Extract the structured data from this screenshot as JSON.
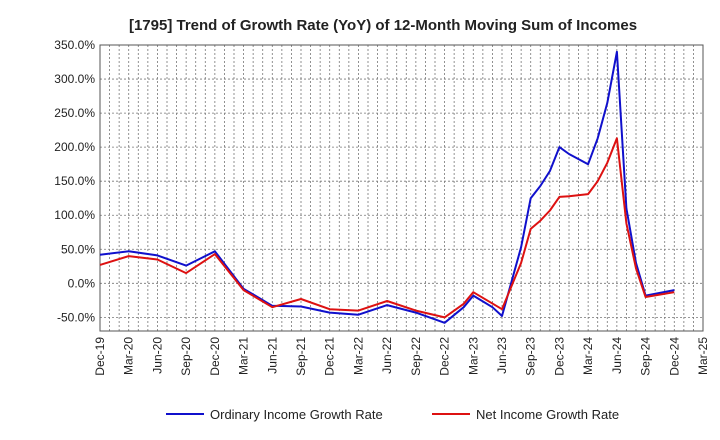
{
  "chart_data": {
    "type": "line",
    "title": "[1795]  Trend of Growth Rate (YoY) of 12-Month Moving Sum of Incomes",
    "xlabel": "",
    "ylabel": "",
    "ylim": [
      -70,
      350
    ],
    "y_ticks": [
      "350.0%",
      "300.0%",
      "250.0%",
      "200.0%",
      "150.0%",
      "100.0%",
      "50.0%",
      "0.0%",
      "-50.0%"
    ],
    "y_tick_values": [
      350,
      300,
      250,
      200,
      150,
      100,
      50,
      0,
      -50
    ],
    "x_ticks": [
      "Dec-19",
      "Mar-20",
      "Jun-20",
      "Sep-20",
      "Dec-20",
      "Mar-21",
      "Jun-21",
      "Sep-21",
      "Dec-21",
      "Mar-22",
      "Jun-22",
      "Sep-22",
      "Dec-22",
      "Mar-23",
      "Jun-23",
      "Sep-23",
      "Dec-23",
      "Mar-24",
      "Jun-24",
      "Sep-24",
      "Dec-24",
      "Mar-25"
    ],
    "grid": true,
    "legend_position": "bottom",
    "series": [
      {
        "name": "Ordinary Income Growth Rate",
        "color": "#1010cc",
        "values": [
          [
            0,
            42
          ],
          [
            3,
            47
          ],
          [
            6,
            41
          ],
          [
            9,
            26
          ],
          [
            12,
            47
          ],
          [
            15,
            -8
          ],
          [
            18,
            -33
          ],
          [
            21,
            -34
          ],
          [
            24,
            -43
          ],
          [
            27,
            -46
          ],
          [
            30,
            -32
          ],
          [
            33,
            -43
          ],
          [
            36,
            -58
          ],
          [
            38,
            -35
          ],
          [
            39,
            -18
          ],
          [
            41,
            -35
          ],
          [
            42,
            -48
          ],
          [
            44,
            53
          ],
          [
            45,
            125
          ],
          [
            46,
            143
          ],
          [
            47,
            165
          ],
          [
            48,
            200
          ],
          [
            49,
            190
          ],
          [
            51,
            175
          ],
          [
            52,
            213
          ],
          [
            53,
            265
          ],
          [
            54,
            340
          ],
          [
            55,
            110
          ],
          [
            56,
            30
          ],
          [
            57,
            -18
          ],
          [
            60,
            -10
          ]
        ]
      },
      {
        "name": "Net Income Growth Rate",
        "color": "#dd1111",
        "values": [
          [
            0,
            27
          ],
          [
            3,
            40
          ],
          [
            6,
            35
          ],
          [
            9,
            15
          ],
          [
            12,
            43
          ],
          [
            15,
            -10
          ],
          [
            18,
            -35
          ],
          [
            21,
            -23
          ],
          [
            24,
            -38
          ],
          [
            27,
            -40
          ],
          [
            30,
            -26
          ],
          [
            33,
            -40
          ],
          [
            36,
            -50
          ],
          [
            38,
            -30
          ],
          [
            39,
            -13
          ],
          [
            42,
            -38
          ],
          [
            44,
            30
          ],
          [
            45,
            80
          ],
          [
            46,
            92
          ],
          [
            47,
            107
          ],
          [
            48,
            127
          ],
          [
            49,
            128
          ],
          [
            51,
            131
          ],
          [
            52,
            150
          ],
          [
            53,
            177
          ],
          [
            54,
            213
          ],
          [
            55,
            88
          ],
          [
            56,
            22
          ],
          [
            57,
            -20
          ],
          [
            60,
            -13
          ]
        ]
      }
    ]
  }
}
